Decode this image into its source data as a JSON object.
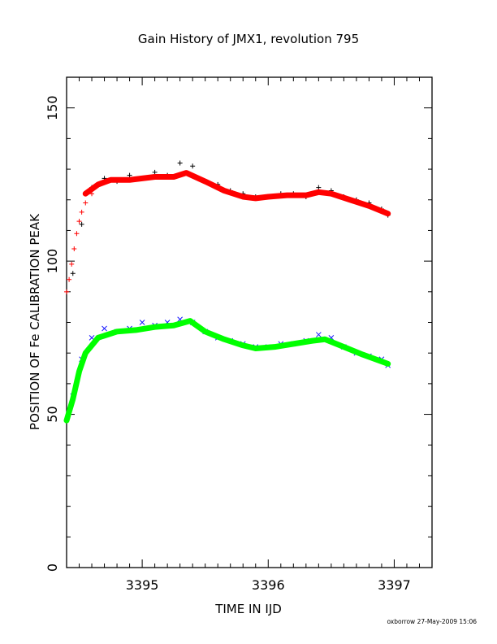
{
  "chart_data": {
    "type": "scatter",
    "title": "Gain History of JMX1, revolution 795",
    "xlabel": "TIME IN IJD",
    "ylabel": "POSITION OF Fe CALIBRATION PEAK",
    "xlim": [
      3394.4,
      3397.3
    ],
    "ylim": [
      0,
      160
    ],
    "xticks": [
      "3395",
      "3396",
      "3397"
    ],
    "yticks": [
      "0",
      "50",
      "100",
      "150"
    ],
    "credit": "oxborrow 27-May-2009 15:06",
    "grid": false,
    "legend": "none",
    "series": [
      {
        "marker": "plus",
        "color": "#000000",
        "x": [
          3394.45,
          3394.52,
          3394.6,
          3394.7,
          3394.8,
          3394.9,
          3395.0,
          3395.1,
          3395.2,
          3395.3,
          3395.4,
          3395.5,
          3395.6,
          3395.7,
          3395.8,
          3395.9,
          3396.0,
          3396.1,
          3396.2,
          3396.3,
          3396.4,
          3396.5,
          3396.6,
          3396.7,
          3396.8,
          3396.9,
          3396.95
        ],
        "y": [
          96,
          112,
          124,
          127,
          126,
          128,
          127,
          129,
          128,
          132,
          131,
          126,
          125,
          123,
          122,
          121,
          121,
          122,
          122,
          121,
          124,
          123,
          121,
          120,
          119,
          117,
          115
        ]
      },
      {
        "marker": "plus",
        "color": "#ff0000",
        "x": [
          3394.4,
          3394.42,
          3394.44,
          3394.46,
          3394.48,
          3394.5,
          3394.52,
          3394.55,
          3394.6
        ],
        "y": [
          90,
          94,
          99,
          104,
          109,
          113,
          116,
          119,
          122
        ]
      },
      {
        "marker": "line",
        "color": "#ff0000",
        "x": [
          3394.55,
          3394.65,
          3394.75,
          3394.9,
          3395.1,
          3395.25,
          3395.35,
          3395.5,
          3395.65,
          3395.8,
          3395.9,
          3396.0,
          3396.15,
          3396.3,
          3396.4,
          3396.5,
          3396.65,
          3396.8,
          3396.95
        ],
        "y": [
          122,
          125,
          126.5,
          126.5,
          127.5,
          127.5,
          128.8,
          126,
          123,
          121,
          120.5,
          121,
          121.5,
          121.5,
          122.5,
          122,
          120,
          118,
          115.5
        ]
      },
      {
        "marker": "cross",
        "color": "#1a1aff",
        "x": [
          3394.45,
          3394.52,
          3394.6,
          3394.7,
          3394.8,
          3394.9,
          3395.0,
          3395.1,
          3395.2,
          3395.3,
          3395.4,
          3395.5,
          3395.6,
          3395.7,
          3395.8,
          3395.9,
          3396.0,
          3396.1,
          3396.2,
          3396.3,
          3396.4,
          3396.5,
          3396.6,
          3396.7,
          3396.8,
          3396.9,
          3396.95
        ],
        "y": [
          56,
          68,
          75,
          78,
          77,
          78,
          80,
          79,
          80,
          81,
          80,
          77,
          75,
          74,
          73,
          72,
          72,
          73,
          73,
          74,
          76,
          75,
          72,
          70,
          69,
          68,
          66
        ]
      },
      {
        "marker": "line",
        "color": "#00ff00",
        "x": [
          3394.4,
          3394.45,
          3394.5,
          3394.55,
          3394.65,
          3394.8,
          3394.95,
          3395.1,
          3395.25,
          3395.38,
          3395.5,
          3395.65,
          3395.8,
          3395.9,
          3396.05,
          3396.2,
          3396.35,
          3396.45,
          3396.6,
          3396.75,
          3396.95
        ],
        "y": [
          48,
          55,
          64,
          70,
          75,
          77,
          77.5,
          78.5,
          79,
          80.5,
          77,
          74.5,
          72.5,
          71.5,
          72,
          73,
          74,
          74.5,
          72,
          69.5,
          66.5
        ]
      }
    ]
  }
}
